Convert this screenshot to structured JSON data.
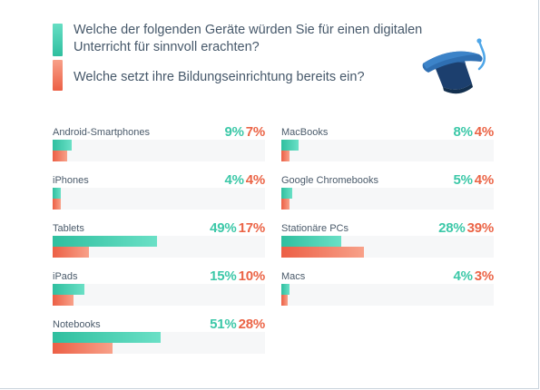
{
  "legend": {
    "series1_label": "Welche der folgenden Geräte würden Sie für einen digitalen Unterricht für sinnvoll erachten?",
    "series2_label": "Welche setzt ihre Bildungseinrichtung bereits ein?"
  },
  "colors": {
    "series1": "#3cc8a8",
    "series2": "#eb6446"
  },
  "icon": "graduation-cap-icon",
  "chart_data": {
    "type": "bar",
    "series": [
      {
        "name": "Welche der folgenden Geräte würden Sie für einen digitalen Unterricht für sinnvoll erachten?",
        "color": "#3cc8a8"
      },
      {
        "name": "Welche setzt ihre Bildungseinrichtung bereits ein?",
        "color": "#eb6446"
      }
    ],
    "unit": "%",
    "xlim": [
      0,
      100
    ],
    "items": [
      {
        "label": "Android-Smartphones",
        "v1": 9,
        "v1_text": "9%",
        "v2": 7,
        "v2_text": "7%"
      },
      {
        "label": "iPhones",
        "v1": 4,
        "v1_text": "4%",
        "v2": 4,
        "v2_text": "4%"
      },
      {
        "label": "Tablets",
        "v1": 49,
        "v1_text": "49%",
        "v2": 17,
        "v2_text": "17%"
      },
      {
        "label": "iPads",
        "v1": 15,
        "v1_text": "15%",
        "v2": 10,
        "v2_text": "10%"
      },
      {
        "label": "Notebooks",
        "v1": 51,
        "v1_text": "51%",
        "v2": 28,
        "v2_text": "28%"
      },
      {
        "label": "MacBooks",
        "v1": 8,
        "v1_text": "8%",
        "v2": 4,
        "v2_text": "4%"
      },
      {
        "label": "Google Chromebooks",
        "v1": 5,
        "v1_text": "5%",
        "v2": 4,
        "v2_text": "4%"
      },
      {
        "label": "Stationäre PCs",
        "v1": 28,
        "v1_text": "28%",
        "v2": 39,
        "v2_text": "39%"
      },
      {
        "label": "Macs",
        "v1": 4,
        "v1_text": "4%",
        "v2": 3,
        "v2_text": "3%"
      }
    ]
  }
}
